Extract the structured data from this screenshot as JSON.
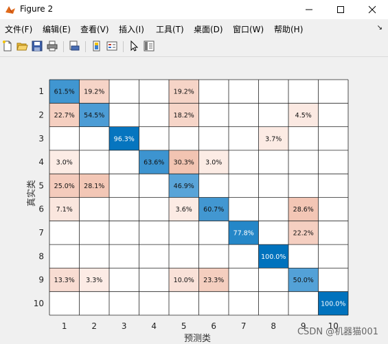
{
  "window": {
    "title": "Figure 2"
  },
  "menu": [
    "文件(F)",
    "编辑(E)",
    "查看(V)",
    "插入(I)",
    "工具(T)",
    "桌面(D)",
    "窗口(W)",
    "帮助(H)"
  ],
  "watermark": "CSDN @机器猫001",
  "chart_data": {
    "type": "heatmap",
    "xlabel": "预测类",
    "ylabel": "真实类",
    "x_ticks": [
      "1",
      "2",
      "3",
      "4",
      "5",
      "6",
      "7",
      "8",
      "9",
      "10"
    ],
    "y_ticks": [
      "1",
      "2",
      "3",
      "4",
      "5",
      "6",
      "7",
      "8",
      "9",
      "10"
    ],
    "grid": true,
    "cells": [
      {
        "row": 1,
        "col": 1,
        "text": "61.5%",
        "value": 61.5
      },
      {
        "row": 1,
        "col": 2,
        "text": "19.2%",
        "value": 19.2
      },
      {
        "row": 1,
        "col": 5,
        "text": "19.2%",
        "value": 19.2
      },
      {
        "row": 2,
        "col": 1,
        "text": "22.7%",
        "value": 22.7
      },
      {
        "row": 2,
        "col": 2,
        "text": "54.5%",
        "value": 54.5
      },
      {
        "row": 2,
        "col": 5,
        "text": "18.2%",
        "value": 18.2
      },
      {
        "row": 2,
        "col": 9,
        "text": "4.5%",
        "value": 4.5
      },
      {
        "row": 3,
        "col": 3,
        "text": "96.3%",
        "value": 96.3
      },
      {
        "row": 3,
        "col": 8,
        "text": "3.7%",
        "value": 3.7
      },
      {
        "row": 4,
        "col": 1,
        "text": "3.0%",
        "value": 3.0
      },
      {
        "row": 4,
        "col": 4,
        "text": "63.6%",
        "value": 63.6
      },
      {
        "row": 4,
        "col": 5,
        "text": "30.3%",
        "value": 30.3
      },
      {
        "row": 4,
        "col": 6,
        "text": "3.0%",
        "value": 3.0
      },
      {
        "row": 5,
        "col": 1,
        "text": "25.0%",
        "value": 25.0
      },
      {
        "row": 5,
        "col": 2,
        "text": "28.1%",
        "value": 28.1
      },
      {
        "row": 5,
        "col": 5,
        "text": "46.9%",
        "value": 46.9
      },
      {
        "row": 6,
        "col": 1,
        "text": "7.1%",
        "value": 7.1
      },
      {
        "row": 6,
        "col": 5,
        "text": "3.6%",
        "value": 3.6
      },
      {
        "row": 6,
        "col": 6,
        "text": "60.7%",
        "value": 60.7
      },
      {
        "row": 6,
        "col": 9,
        "text": "28.6%",
        "value": 28.6
      },
      {
        "row": 7,
        "col": 7,
        "text": "77.8%",
        "value": 77.8
      },
      {
        "row": 7,
        "col": 9,
        "text": "22.2%",
        "value": 22.2
      },
      {
        "row": 8,
        "col": 8,
        "text": "100.0%",
        "value": 100.0
      },
      {
        "row": 9,
        "col": 1,
        "text": "13.3%",
        "value": 13.3
      },
      {
        "row": 9,
        "col": 2,
        "text": "3.3%",
        "value": 3.3
      },
      {
        "row": 9,
        "col": 5,
        "text": "10.0%",
        "value": 10.0
      },
      {
        "row": 9,
        "col": 6,
        "text": "23.3%",
        "value": 23.3
      },
      {
        "row": 9,
        "col": 9,
        "text": "50.0%",
        "value": 50.0
      },
      {
        "row": 10,
        "col": 10,
        "text": "100.0%",
        "value": 100.0
      }
    ]
  }
}
